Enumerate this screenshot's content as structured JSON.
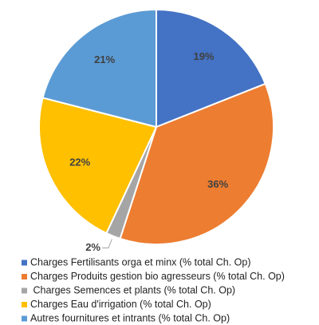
{
  "chart_data": {
    "type": "pie",
    "categories": [
      "Charges Fertilisants orga et minx (% total Ch. Op)",
      "Charges Produits gestion bio agresseurs (% total Ch. Op)",
      " Charges Semences et plants (% total Ch. Op)",
      "Charges Eau d'irrigation (% total Ch. Op)",
      "Autres fournitures et intrants (% total Ch. Op)"
    ],
    "values": [
      19,
      36,
      2,
      22,
      21
    ],
    "value_labels": [
      "19%",
      "36%",
      "2%",
      "22%",
      "21%"
    ],
    "colors": [
      "#4472c4",
      "#ed7d31",
      "#a5a5a5",
      "#ffc000",
      "#5b9bd5"
    ],
    "legend": "bottom"
  }
}
